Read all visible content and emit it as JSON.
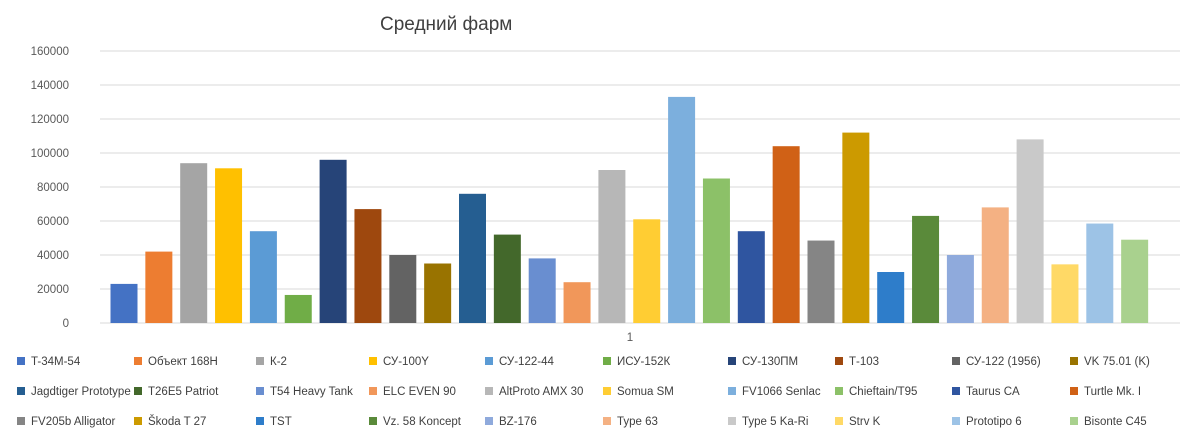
{
  "chart_data": {
    "type": "bar",
    "title": "Средний фарм",
    "categories": [
      "1"
    ],
    "ylim": [
      0,
      160000
    ],
    "yticks": [
      0,
      20000,
      40000,
      60000,
      80000,
      100000,
      120000,
      140000,
      160000
    ],
    "grid": true,
    "legend_position": "bottom",
    "series": [
      {
        "name": "T-34M-54",
        "value": 23000,
        "color": "#4472C4"
      },
      {
        "name": "Объект 168Н",
        "value": 42000,
        "color": "#ED7D31"
      },
      {
        "name": "К-2",
        "value": 94000,
        "color": "#A5A5A5"
      },
      {
        "name": "СУ-100Y",
        "value": 91000,
        "color": "#FFC000"
      },
      {
        "name": "СУ-122-44",
        "value": 54000,
        "color": "#5B9BD5"
      },
      {
        "name": "ИСУ-152К",
        "value": 16500,
        "color": "#70AD47"
      },
      {
        "name": "СУ-130ПМ",
        "value": 96000,
        "color": "#264478"
      },
      {
        "name": "Т-103",
        "value": 67000,
        "color": "#9E480E"
      },
      {
        "name": "СУ-122 (1956)",
        "value": 40000,
        "color": "#636363"
      },
      {
        "name": "VK 75.01 (K)",
        "value": 35000,
        "color": "#997300"
      },
      {
        "name": "Jagdtiger Prototype",
        "value": 76000,
        "color": "#255E91"
      },
      {
        "name": "T26E5 Patriot",
        "value": 52000,
        "color": "#43682B"
      },
      {
        "name": "T54 Heavy Tank",
        "value": 38000,
        "color": "#698ED0"
      },
      {
        "name": "ELC EVEN 90",
        "value": 24000,
        "color": "#F1975A"
      },
      {
        "name": "AltProto AMX 30",
        "value": 90000,
        "color": "#B7B7B7"
      },
      {
        "name": "Somua SM",
        "value": 61000,
        "color": "#FFCD33"
      },
      {
        "name": "FV1066 Senlac",
        "value": 133000,
        "color": "#7CAFDD"
      },
      {
        "name": "Chieftain/T95",
        "value": 85000,
        "color": "#8CC168"
      },
      {
        "name": "Taurus CA",
        "value": 54000,
        "color": "#2F55A0"
      },
      {
        "name": "Turtle Mk. I",
        "value": 104000,
        "color": "#D06116"
      },
      {
        "name": "FV205b Alligator",
        "value": 48500,
        "color": "#858585"
      },
      {
        "name": "Škoda T 27",
        "value": 112000,
        "color": "#CC9A00"
      },
      {
        "name": "TST",
        "value": 30000,
        "color": "#2E7DCA"
      },
      {
        "name": "Vz. 58 Koncept",
        "value": 63000,
        "color": "#5A8A3A"
      },
      {
        "name": "BZ-176",
        "value": 40000,
        "color": "#8FAADC"
      },
      {
        "name": "Type 63",
        "value": 68000,
        "color": "#F4B183"
      },
      {
        "name": "Type 5 Ka-Ri",
        "value": 108000,
        "color": "#C9C9C9"
      },
      {
        "name": "Strv K",
        "value": 34500,
        "color": "#FFD966"
      },
      {
        "name": "Prototipo 6",
        "value": 58500,
        "color": "#9DC3E6"
      },
      {
        "name": "Bisonte C45",
        "value": 49000,
        "color": "#A9D18E"
      }
    ]
  }
}
